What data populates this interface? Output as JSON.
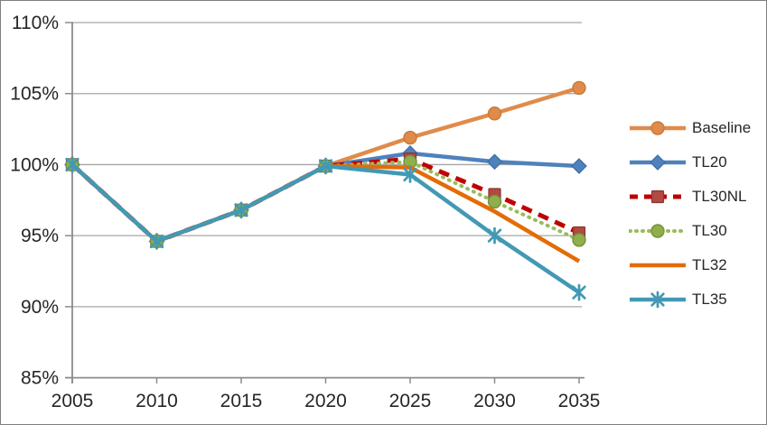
{
  "window": {
    "background": "#ffffff",
    "border_color": "#7f7f7f"
  },
  "chart_data": {
    "type": "line",
    "title": "",
    "xlabel": "",
    "ylabel": "",
    "x": [
      2005,
      2010,
      2015,
      2020,
      2025,
      2030,
      2035
    ],
    "x_tick_labels": [
      "2005",
      "2010",
      "2015",
      "2020",
      "2025",
      "2030",
      "2035"
    ],
    "y_ticks": [
      110,
      105,
      100,
      95,
      90,
      85
    ],
    "y_tick_labels": [
      "110%",
      "105%",
      "100%",
      "95%",
      "90%",
      "85%"
    ],
    "ylim": [
      85,
      110
    ],
    "grid": "horizontal-only",
    "legend_position": "right",
    "axis_color": "#8c8c8c",
    "grid_color": "#a6a6a6",
    "label_color": "#262626",
    "series": [
      {
        "name": "Baseline",
        "color": "#E08B4B",
        "line": "solid",
        "marker": "circle",
        "marker_fill": "#E08B4B",
        "marker_stroke": "#C77A36",
        "values": [
          100,
          94.6,
          96.8,
          99.9,
          101.9,
          103.6,
          105.4
        ]
      },
      {
        "name": "TL20",
        "color": "#4F81BD",
        "line": "solid",
        "marker": "diamond",
        "marker_fill": "#4F81BD",
        "marker_stroke": "#3D6DA3",
        "values": [
          100,
          94.6,
          96.8,
          99.9,
          100.8,
          100.2,
          99.9
        ]
      },
      {
        "name": "TL30NL",
        "color": "#C00000",
        "line": "dashed",
        "marker": "square",
        "marker_fill": "#B04A42",
        "marker_stroke": "#8A3531",
        "values": [
          100,
          94.6,
          96.8,
          99.9,
          100.4,
          97.9,
          95.2
        ]
      },
      {
        "name": "TL30",
        "color": "#9BBB59",
        "line": "dotted",
        "marker": "circle",
        "marker_fill": "#8FAF4D",
        "marker_stroke": "#75923C",
        "values": [
          100,
          94.6,
          96.8,
          99.9,
          100.2,
          97.4,
          94.7
        ]
      },
      {
        "name": "TL32",
        "color": "#E36C09",
        "line": "solid",
        "marker": "none",
        "marker_fill": "#E36C09",
        "marker_stroke": "#E36C09",
        "values": [
          100,
          94.6,
          96.8,
          99.9,
          99.8,
          96.7,
          93.2
        ]
      },
      {
        "name": "TL35",
        "color": "#4299B4",
        "line": "solid",
        "marker": "star",
        "marker_fill": "#4299B4",
        "marker_stroke": "#4299B4",
        "values": [
          100,
          94.6,
          96.8,
          99.9,
          99.3,
          95.0,
          91.0
        ]
      }
    ]
  }
}
